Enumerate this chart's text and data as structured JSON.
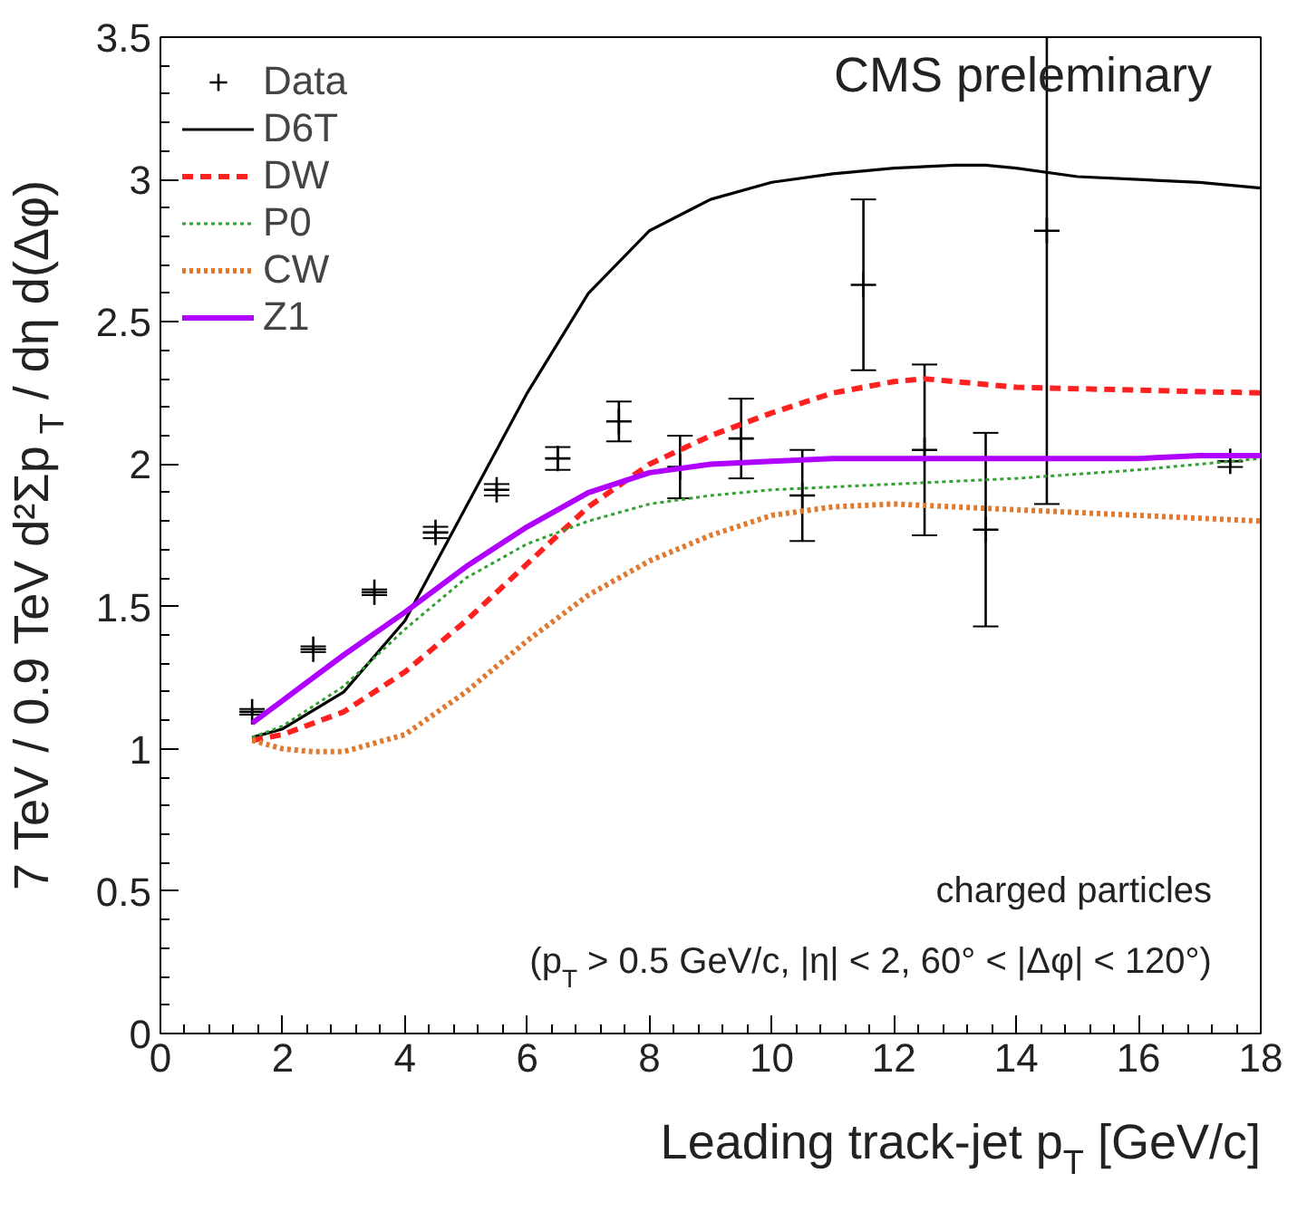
{
  "chart_data": {
    "type": "line",
    "xlabel": "Leading track-jet p$_{T}$ [GeV/c]",
    "ylabel": "7 TeV / 0.9 TeV d²Σp$_{T}$ / dη d(Δφ)",
    "xlim": [
      0,
      18
    ],
    "ylim": [
      0,
      3.5
    ],
    "xticks": [
      0,
      2,
      4,
      6,
      8,
      10,
      12,
      14,
      16,
      18
    ],
    "yticks": [
      0,
      0.5,
      1,
      1.5,
      2,
      2.5,
      3,
      3.5
    ],
    "grid": false,
    "legend": "top left",
    "annotations": [
      "CMS preleminary",
      "charged particles",
      "(p$_{T}$ > 0.5 GeV/c, |η| < 2, 60° < |Δφ| < 120°)"
    ],
    "series": [
      {
        "name": "Data",
        "type": "scatter",
        "marker": "cross",
        "color": "#000000",
        "x": [
          1.5,
          2.5,
          3.5,
          4.5,
          5.5,
          6.5,
          7.5,
          8.5,
          9.5,
          10.5,
          11.5,
          12.5,
          13.5,
          14.5,
          17.5
        ],
        "values": [
          1.13,
          1.35,
          1.55,
          1.76,
          1.91,
          2.02,
          2.15,
          1.99,
          2.09,
          1.89,
          2.63,
          2.05,
          1.77,
          2.82,
          2.01
        ],
        "errors": [
          0.01,
          0.01,
          0.01,
          0.02,
          0.02,
          0.04,
          0.07,
          0.11,
          0.14,
          0.16,
          0.3,
          0.3,
          0.34,
          [
            1.86,
            3.5
          ],
          0.02
        ]
      },
      {
        "name": "D6T",
        "type": "line",
        "line_style": "solid",
        "color": "#000000",
        "x": [
          1.5,
          2,
          3,
          4,
          5,
          6,
          7,
          8,
          9,
          10,
          11,
          12,
          13,
          13.5,
          14,
          15,
          16,
          17,
          18
        ],
        "values": [
          1.04,
          1.07,
          1.2,
          1.45,
          1.85,
          2.25,
          2.6,
          2.82,
          2.93,
          2.99,
          3.02,
          3.04,
          3.05,
          3.05,
          3.04,
          3.01,
          3.0,
          2.99,
          2.97
        ]
      },
      {
        "name": "DW",
        "type": "line",
        "line_style": "dashed",
        "color": "#ff2020",
        "x": [
          1.5,
          2,
          3,
          4,
          5,
          6,
          7,
          8,
          9,
          10,
          11,
          12,
          12.5,
          13,
          14,
          16,
          18
        ],
        "values": [
          1.03,
          1.05,
          1.13,
          1.27,
          1.45,
          1.65,
          1.85,
          2.0,
          2.1,
          2.18,
          2.25,
          2.29,
          2.3,
          2.29,
          2.27,
          2.26,
          2.25
        ]
      },
      {
        "name": "P0",
        "type": "line",
        "line_style": "dotted",
        "color": "#33a033",
        "x": [
          1.5,
          2,
          3,
          4,
          5,
          6,
          7,
          8,
          9,
          10,
          12,
          14,
          16,
          18
        ],
        "values": [
          1.04,
          1.08,
          1.22,
          1.42,
          1.6,
          1.72,
          1.8,
          1.86,
          1.89,
          1.91,
          1.93,
          1.95,
          1.98,
          2.02
        ]
      },
      {
        "name": "CW",
        "type": "line",
        "line_style": "dotted",
        "color": "#e07a30",
        "x": [
          1.5,
          2,
          2.5,
          3,
          4,
          5,
          6,
          7,
          8,
          9,
          10,
          11,
          12,
          14,
          16,
          18
        ],
        "values": [
          1.03,
          1.0,
          0.99,
          0.99,
          1.05,
          1.2,
          1.38,
          1.54,
          1.66,
          1.75,
          1.82,
          1.85,
          1.86,
          1.84,
          1.82,
          1.8
        ]
      },
      {
        "name": "Z1",
        "type": "line",
        "line_style": "solid",
        "color": "#b000ff",
        "x": [
          1.5,
          2,
          3,
          4,
          5,
          6,
          7,
          8,
          9,
          10,
          11,
          12,
          13,
          14,
          16,
          17,
          18
        ],
        "values": [
          1.09,
          1.17,
          1.33,
          1.48,
          1.64,
          1.78,
          1.9,
          1.97,
          2.0,
          2.01,
          2.02,
          2.02,
          2.02,
          2.02,
          2.02,
          2.03,
          2.03
        ]
      }
    ]
  }
}
